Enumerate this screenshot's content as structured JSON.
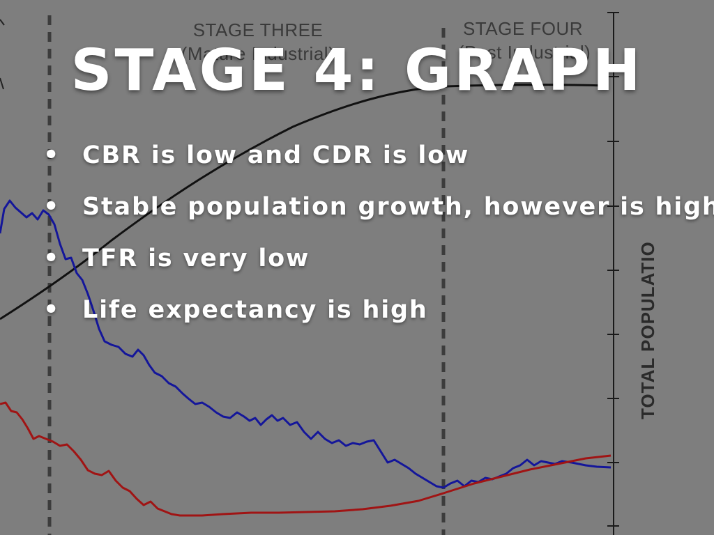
{
  "slide": {
    "title": "STAGE 4: GRAPH",
    "bullets": [
      "CBR is low and CDR is low",
      "Stable population growth, however is high",
      "TFR is very low",
      "Life expectancy is high"
    ],
    "bullet_glyph": "•"
  },
  "background_graph": {
    "stage_labels": [
      {
        "title": "STAGE THREE",
        "subtitle": "(Mature Industrial)"
      },
      {
        "title": "STAGE FOUR",
        "subtitle": "(Post Industrial)"
      }
    ],
    "right_axis_label": "TOTAL POPULATIO",
    "colors": {
      "birth_rate": "#14169a",
      "death_rate": "#a01414",
      "total_population": "#111111",
      "divider": "#3c3c3c"
    }
  }
}
